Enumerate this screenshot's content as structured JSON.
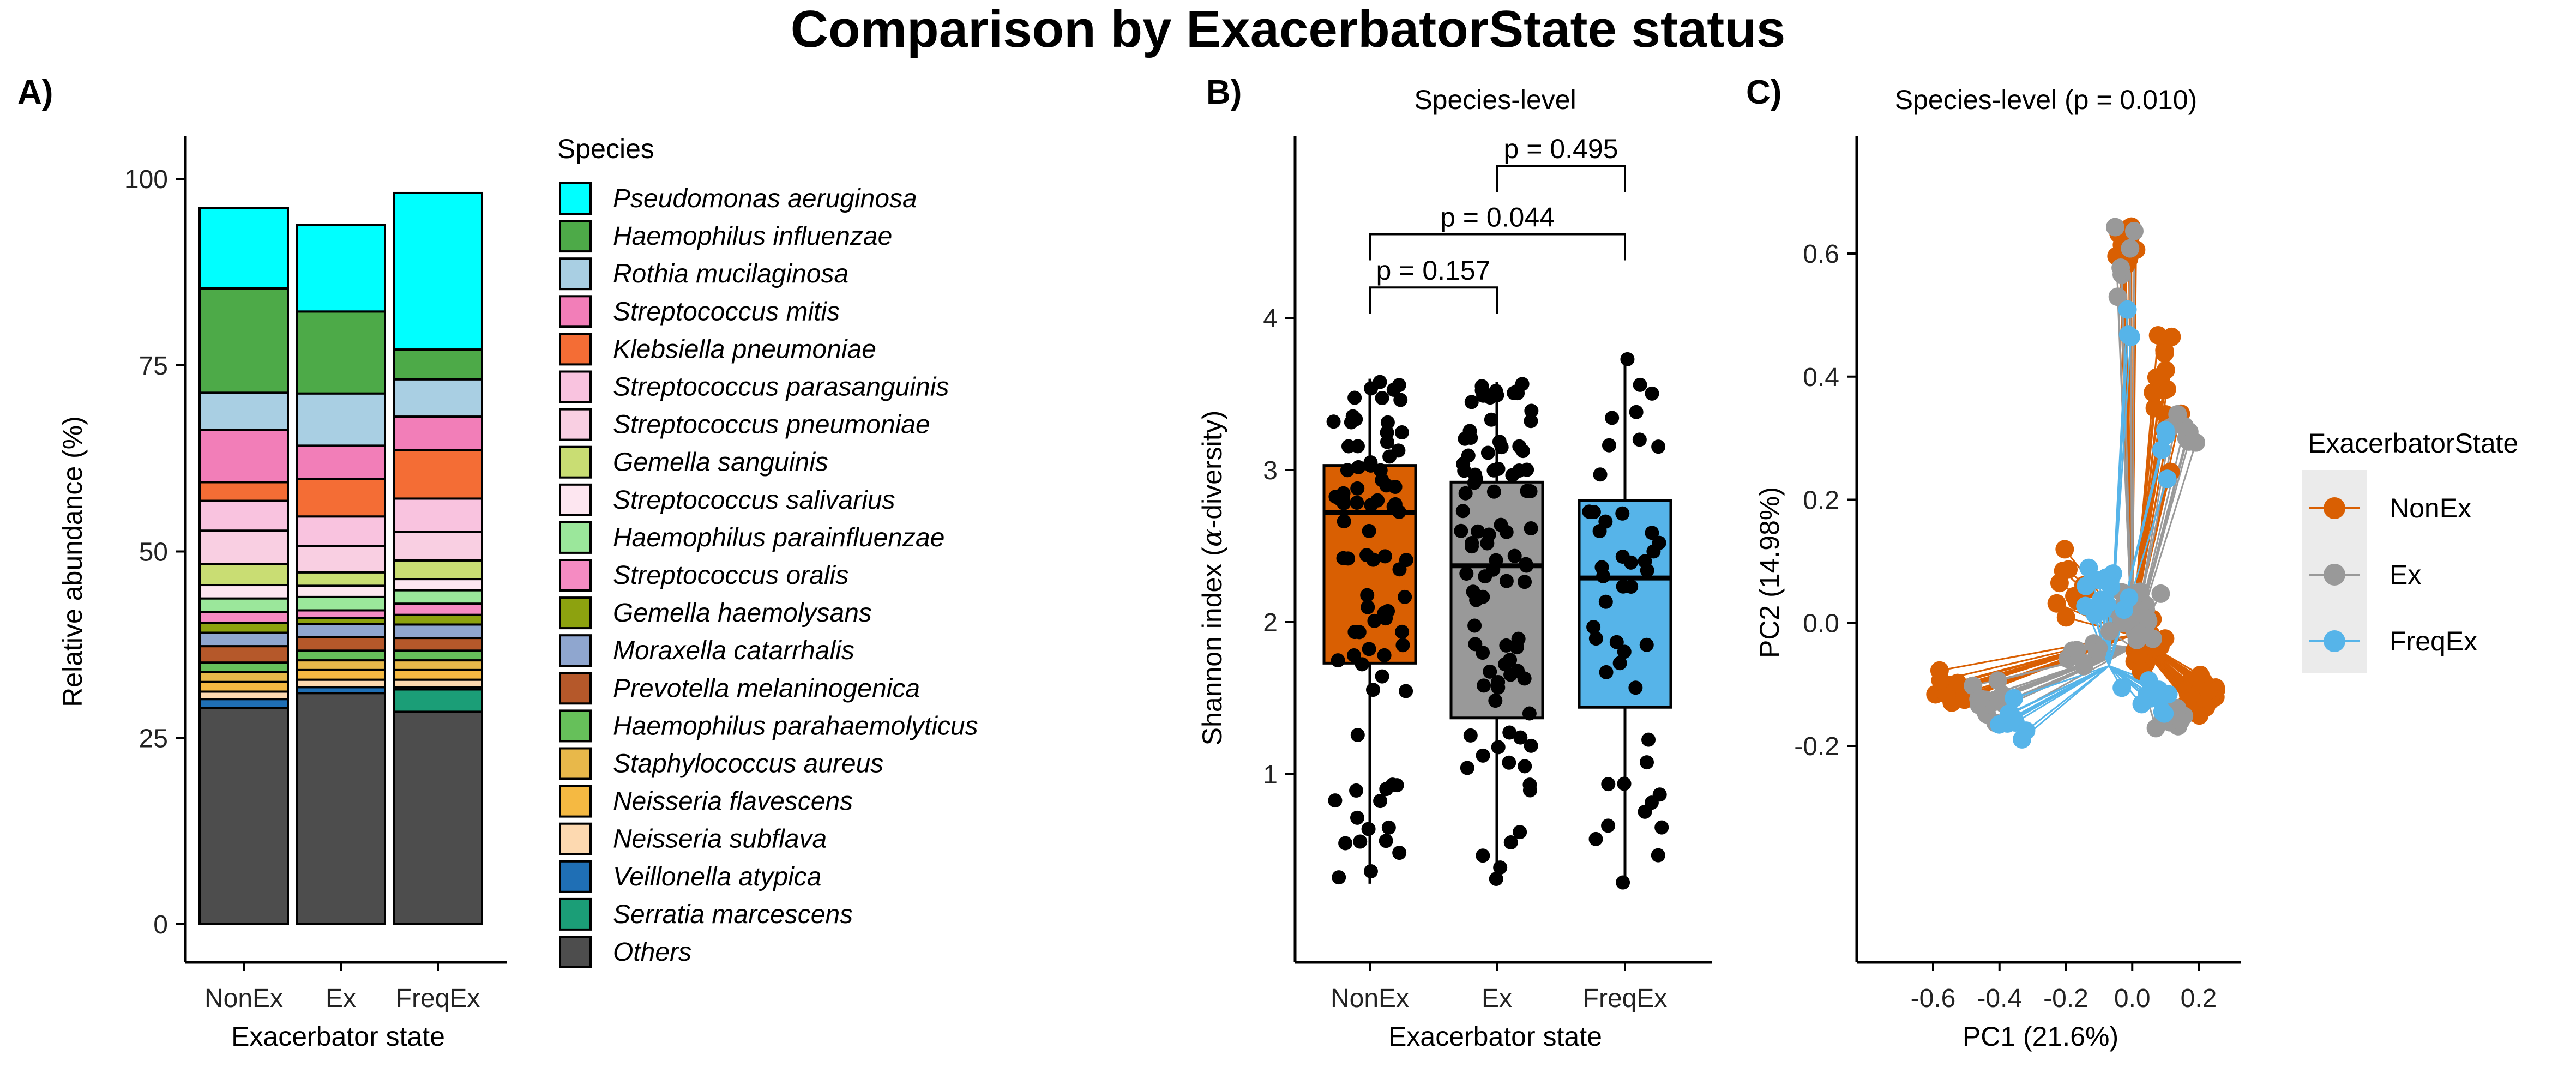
{
  "figure": {
    "title": "Comparison by ExacerbatorState status"
  },
  "colors": {
    "NonEx": "#D95F02",
    "Ex": "#999999",
    "FreqEx": "#56B4E9"
  },
  "chart_data": [
    {
      "panel": "A)",
      "type": "bar",
      "stacked": true,
      "xlabel": "Exacerbator state",
      "ylabel": "Relative abundance (%)",
      "ylim": [
        0,
        100
      ],
      "yticks": [
        0,
        25,
        50,
        75,
        100
      ],
      "categories": [
        "NonEx",
        "Ex",
        "FreqEx"
      ],
      "legend_title": "Species",
      "legend_position": "right",
      "series": [
        {
          "name": "Others",
          "color": "#4D4D4D",
          "values": [
            29.0,
            31.0,
            28.5
          ]
        },
        {
          "name": "Serratia marcescens",
          "color": "#1B9E77",
          "values": [
            0.0,
            0.0,
            3.0
          ]
        },
        {
          "name": "Veillonella atypica",
          "color": "#1F6FB5",
          "values": [
            1.2,
            0.8,
            0.3
          ]
        },
        {
          "name": "Neisseria subflava",
          "color": "#FDD9B0",
          "values": [
            1.0,
            1.0,
            1.0
          ]
        },
        {
          "name": "Neisseria flavescens",
          "color": "#F5B942",
          "values": [
            1.3,
            1.3,
            1.3
          ]
        },
        {
          "name": "Staphylococcus aureus",
          "color": "#E8B84A",
          "values": [
            1.3,
            1.3,
            1.3
          ]
        },
        {
          "name": "Haemophilus parahaemolyticus",
          "color": "#66C05A",
          "values": [
            1.3,
            1.3,
            1.3
          ]
        },
        {
          "name": "Prevotella melaninogenica",
          "color": "#B5582A",
          "values": [
            2.2,
            1.8,
            1.7
          ]
        },
        {
          "name": "Moraxella catarrhalis",
          "color": "#8FA6CF",
          "values": [
            1.8,
            1.8,
            1.8
          ]
        },
        {
          "name": "Gemella haemolysans",
          "color": "#8DA20F",
          "values": [
            1.3,
            0.8,
            1.3
          ]
        },
        {
          "name": "Streptococcus oralis",
          "color": "#F58BC2",
          "values": [
            1.5,
            1.0,
            1.5
          ]
        },
        {
          "name": "Haemophilus parainfluenzae",
          "color": "#9BE79B",
          "values": [
            1.8,
            1.8,
            1.8
          ]
        },
        {
          "name": "Streptococcus salivarius",
          "color": "#FDE6F0",
          "values": [
            1.8,
            1.5,
            1.5
          ]
        },
        {
          "name": "Gemella sanguinis",
          "color": "#C9DD73",
          "values": [
            2.8,
            1.8,
            2.5
          ]
        },
        {
          "name": "Streptococcus pneumoniae",
          "color": "#F9CFE2",
          "values": [
            4.5,
            3.5,
            3.8
          ]
        },
        {
          "name": "Streptococcus parasanguinis",
          "color": "#F9C3DF",
          "values": [
            4.0,
            4.0,
            4.5
          ]
        },
        {
          "name": "Klebsiella pneumoniae",
          "color": "#F46D35",
          "values": [
            2.5,
            5.0,
            6.5
          ]
        },
        {
          "name": "Streptococcus mitis",
          "color": "#F27EB8",
          "values": [
            7.0,
            4.5,
            4.5
          ]
        },
        {
          "name": "Rothia mucilaginosa",
          "color": "#A9CFE3",
          "values": [
            5.0,
            7.0,
            5.0
          ]
        },
        {
          "name": "Haemophilus influenzae",
          "color": "#4DAA48",
          "values": [
            14.0,
            11.0,
            4.0
          ]
        },
        {
          "name": "Pseudomonas aeruginosa",
          "color": "#00FFFF",
          "values": [
            10.8,
            11.6,
            21.0
          ]
        }
      ]
    },
    {
      "panel": "B)",
      "type": "box",
      "title": "Species-level",
      "xlabel": "Exacerbator state",
      "ylabel_main": "Shannon index (",
      "ylabel_symbol": "α",
      "ylabel_tail": "-diversity)",
      "ylim": [
        0,
        5.2
      ],
      "yticks": [
        1,
        2,
        3,
        4
      ],
      "categories": [
        "NonEx",
        "Ex",
        "FreqEx"
      ],
      "boxes": [
        {
          "group": "NonEx",
          "q1": 1.73,
          "median": 2.72,
          "q3": 3.03,
          "whisker_low": 0.28,
          "whisker_high": 3.6
        },
        {
          "group": "Ex",
          "q1": 1.37,
          "median": 2.37,
          "q3": 2.92,
          "whisker_low": 0.3,
          "whisker_high": 3.58
        },
        {
          "group": "FreqEx",
          "q1": 1.44,
          "median": 2.29,
          "q3": 2.8,
          "whisker_low": 0.27,
          "whisker_high": 3.76
        }
      ],
      "comparisons": [
        {
          "from": "NonEx",
          "to": "Ex",
          "label": "p = 0.157",
          "level": 4.2
        },
        {
          "from": "NonEx",
          "to": "FreqEx",
          "label": "p = 0.044",
          "level": 4.55
        },
        {
          "from": "Ex",
          "to": "FreqEx",
          "label": "p = 0.495",
          "level": 5.0
        }
      ]
    },
    {
      "panel": "C)",
      "type": "scatter",
      "title": "Species-level (p = 0.010)",
      "xlabel": "PC1 (21.6%)",
      "ylabel": "PC2 (14.98%)",
      "xlim": [
        -0.7,
        0.35
      ],
      "ylim": [
        -0.26,
        0.73
      ],
      "xticks": [
        -0.6,
        -0.4,
        -0.2,
        0.0,
        0.2
      ],
      "yticks": [
        -0.2,
        0.0,
        0.2,
        0.4,
        0.6
      ],
      "legend_title": "ExacerbatorState",
      "legend_position": "right",
      "series": [
        {
          "name": "NonEx",
          "centroid": [
            0.0,
            -0.02
          ]
        },
        {
          "name": "Ex",
          "centroid": [
            0.0,
            -0.04
          ]
        },
        {
          "name": "FreqEx",
          "centroid": [
            -0.07,
            -0.07
          ]
        }
      ]
    }
  ],
  "panelA": {
    "label": "A)"
  },
  "panelB": {
    "label": "B)"
  },
  "panelC": {
    "label": "C)"
  }
}
